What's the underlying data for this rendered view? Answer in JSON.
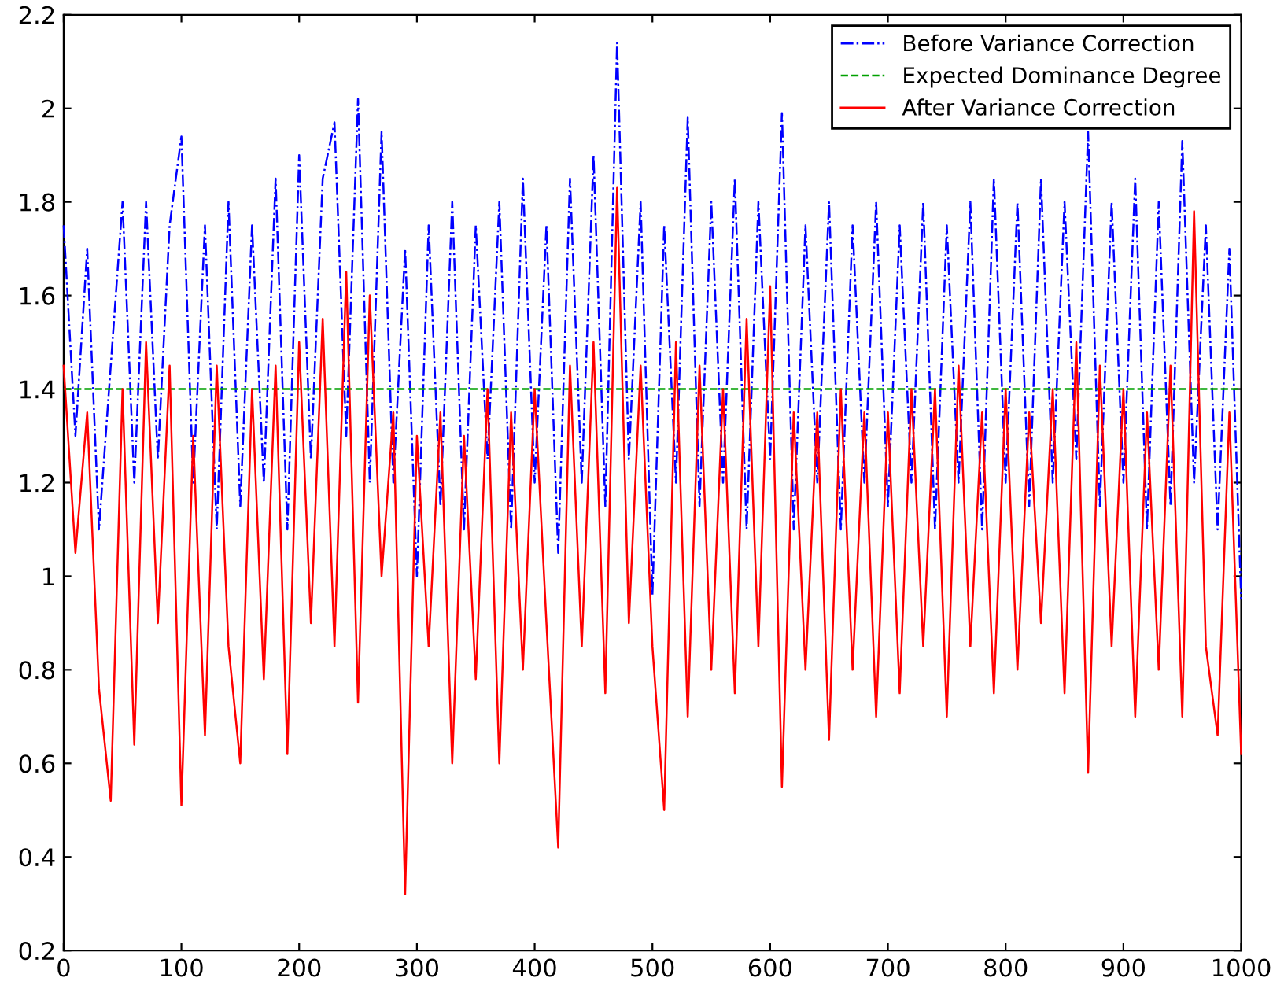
{
  "chart_data": {
    "type": "line",
    "x": [
      0,
      10,
      20,
      30,
      40,
      50,
      60,
      70,
      80,
      90,
      100,
      110,
      120,
      130,
      140,
      150,
      160,
      170,
      180,
      190,
      200,
      210,
      220,
      230,
      240,
      250,
      260,
      270,
      280,
      290,
      300,
      310,
      320,
      330,
      340,
      350,
      360,
      370,
      380,
      390,
      400,
      410,
      420,
      430,
      440,
      450,
      460,
      470,
      480,
      490,
      500,
      510,
      520,
      530,
      540,
      550,
      560,
      570,
      580,
      590,
      600,
      610,
      620,
      630,
      640,
      650,
      660,
      670,
      680,
      690,
      700,
      710,
      720,
      730,
      740,
      750,
      760,
      770,
      780,
      790,
      800,
      810,
      820,
      830,
      840,
      850,
      860,
      870,
      880,
      890,
      900,
      910,
      920,
      930,
      940,
      950,
      960,
      970,
      980,
      990,
      1000
    ],
    "series": [
      {
        "name": "Before Variance Correction",
        "color": "#0000ff",
        "line_style": "dashdot",
        "values": [
          1.75,
          1.3,
          1.7,
          1.1,
          1.45,
          1.8,
          1.2,
          1.8,
          1.25,
          1.75,
          1.94,
          1.2,
          1.75,
          1.1,
          1.8,
          1.15,
          1.75,
          1.2,
          1.85,
          1.1,
          1.9,
          1.25,
          1.85,
          1.97,
          1.3,
          2.02,
          1.2,
          1.95,
          1.2,
          1.7,
          1.0,
          1.75,
          1.15,
          1.8,
          1.1,
          1.75,
          1.25,
          1.8,
          1.1,
          1.85,
          1.2,
          1.75,
          1.05,
          1.85,
          1.2,
          1.9,
          1.15,
          2.14,
          1.25,
          1.8,
          0.96,
          1.75,
          1.2,
          1.98,
          1.15,
          1.8,
          1.2,
          1.85,
          1.1,
          1.8,
          1.25,
          1.99,
          1.1,
          1.75,
          1.2,
          1.8,
          1.1,
          1.75,
          1.2,
          1.8,
          1.15,
          1.75,
          1.2,
          1.8,
          1.1,
          1.75,
          1.2,
          1.8,
          1.1,
          1.85,
          1.2,
          1.8,
          1.15,
          1.85,
          1.2,
          1.8,
          1.25,
          1.95,
          1.15,
          1.8,
          1.2,
          1.85,
          1.1,
          1.8,
          1.15,
          1.93,
          1.2,
          1.75,
          1.1,
          1.7,
          0.95
        ]
      },
      {
        "name": "Expected Dominance Degree",
        "color": "#00a000",
        "line_style": "dashed",
        "x": [
          0,
          1000
        ],
        "values": [
          1.4,
          1.4
        ]
      },
      {
        "name": "After Variance Correction",
        "color": "#ff0000",
        "line_style": "solid",
        "values": [
          1.45,
          1.05,
          1.35,
          0.76,
          0.52,
          1.4,
          0.64,
          1.5,
          0.9,
          1.45,
          0.51,
          1.3,
          0.66,
          1.45,
          0.85,
          0.6,
          1.4,
          0.78,
          1.45,
          0.62,
          1.5,
          0.9,
          1.55,
          0.85,
          1.65,
          0.73,
          1.6,
          1.0,
          1.35,
          0.32,
          1.3,
          0.85,
          1.35,
          0.6,
          1.3,
          0.78,
          1.4,
          0.6,
          1.35,
          0.8,
          1.4,
          0.9,
          0.42,
          1.45,
          0.85,
          1.5,
          0.75,
          1.83,
          0.9,
          1.45,
          0.85,
          0.5,
          1.5,
          0.7,
          1.45,
          0.8,
          1.4,
          0.75,
          1.55,
          0.85,
          1.62,
          0.55,
          1.35,
          0.8,
          1.35,
          0.65,
          1.4,
          0.8,
          1.35,
          0.7,
          1.35,
          0.75,
          1.4,
          0.85,
          1.4,
          0.7,
          1.45,
          0.85,
          1.35,
          0.75,
          1.4,
          0.8,
          1.35,
          0.9,
          1.4,
          0.75,
          1.5,
          0.58,
          1.45,
          0.85,
          1.4,
          0.7,
          1.35,
          0.8,
          1.45,
          0.7,
          1.78,
          0.85,
          0.66,
          1.35,
          0.62
        ]
      }
    ],
    "xlim": [
      0,
      1000
    ],
    "xticks": [
      0,
      100,
      200,
      300,
      400,
      500,
      600,
      700,
      800,
      900,
      1000
    ],
    "ylim": [
      0.2,
      2.2
    ],
    "yticks": [
      0.2,
      0.4,
      0.6,
      0.8,
      1,
      1.2,
      1.4,
      1.6,
      1.8,
      2,
      2.2
    ],
    "legend": "top right",
    "marker": "none"
  }
}
